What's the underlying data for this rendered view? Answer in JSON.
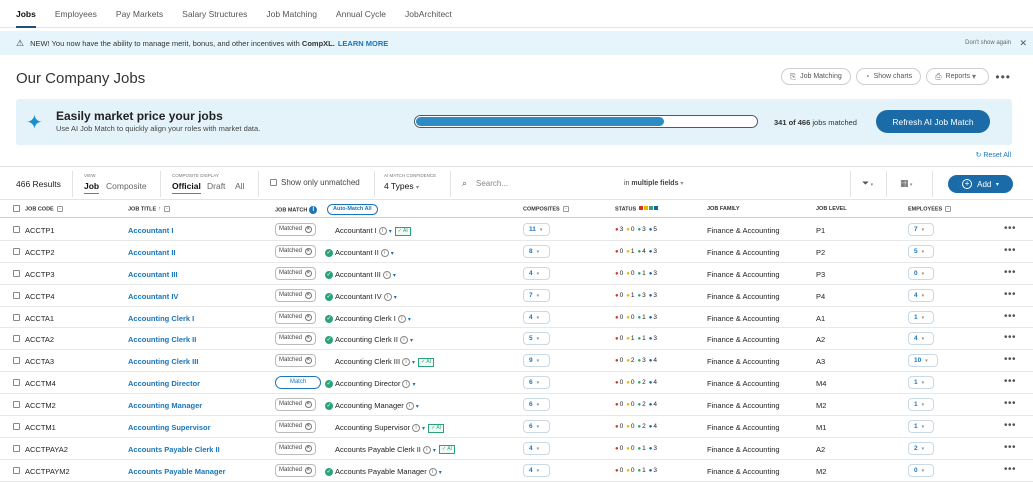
{
  "nav": [
    "Jobs",
    "Employees",
    "Pay Markets",
    "Salary Structures",
    "Job Matching",
    "Annual Cycle",
    "JobArchitect"
  ],
  "banner": {
    "text": "NEW! You now have the ability to manage merit, bonus, and other incentives with",
    "brand": "CompXL.",
    "link": "LEARN MORE",
    "dismiss": "Don't show again"
  },
  "page_title": "Our Company Jobs",
  "actions": {
    "job_matching": "Job Matching",
    "show_charts": "Show charts",
    "reports": "Reports"
  },
  "promo": {
    "title": "Easily market price your jobs",
    "subtitle": "Use AI Job Match to quickly align your roles with market data.",
    "matched_count": "341 of 466",
    "matched_suffix": "jobs matched",
    "progress": 0.73,
    "refresh": "Refresh AI Job Match"
  },
  "reset_all": "Reset All",
  "filters": {
    "results": "466 Results",
    "view_label": "VIEW",
    "view_job": "Job",
    "view_composite": "Composite",
    "composite_label": "COMPOSITE DISPLAY",
    "official": "Official",
    "draft": "Draft",
    "all": "All",
    "unmatched": "Show only unmatched",
    "confidence_label": "AI MATCH CONFIDENCE",
    "confidence_value": "4 Types",
    "search_placeholder": "Search...",
    "fields_prefix": "in",
    "fields_value": "multiple fields",
    "add": "Add"
  },
  "columns": {
    "code": "JOB CODE",
    "title": "JOB TITLE",
    "match": "JOB MATCH",
    "automatch": "Auto-Match All",
    "composites": "COMPOSITES",
    "status": "STATUS",
    "family": "JOB FAMILY",
    "level": "JOB LEVEL",
    "employees": "EMPLOYEES"
  },
  "status_colors": {
    "red": "#d9302b",
    "yellow": "#f0b400",
    "green": "#2aa37a",
    "blue": "#1a5fa8"
  },
  "rows": [
    {
      "code": "ACCTP1",
      "title": "Accountant I",
      "matched": true,
      "check": false,
      "bench": "Accountant I",
      "ai": true,
      "comp": "11",
      "s": [
        3,
        0,
        3,
        5
      ],
      "family": "Finance & Accounting",
      "level": "P1",
      "emp": "7"
    },
    {
      "code": "ACCTP2",
      "title": "Accountant II",
      "matched": true,
      "check": true,
      "bench": "Accountant II",
      "ai": false,
      "comp": "8",
      "s": [
        0,
        1,
        4,
        3
      ],
      "family": "Finance & Accounting",
      "level": "P2",
      "emp": "5"
    },
    {
      "code": "ACCTP3",
      "title": "Accountant III",
      "matched": true,
      "check": true,
      "bench": "Accountant III",
      "ai": false,
      "comp": "4",
      "s": [
        0,
        0,
        1,
        3
      ],
      "family": "Finance & Accounting",
      "level": "P3",
      "emp": "0"
    },
    {
      "code": "ACCTP4",
      "title": "Accountant IV",
      "matched": true,
      "check": true,
      "bench": "Accountant IV",
      "ai": false,
      "comp": "7",
      "s": [
        0,
        1,
        3,
        3
      ],
      "family": "Finance & Accounting",
      "level": "P4",
      "emp": "4"
    },
    {
      "code": "ACCTA1",
      "title": "Accounting Clerk I",
      "matched": true,
      "check": true,
      "bench": "Accounting Clerk I",
      "ai": false,
      "comp": "4",
      "s": [
        0,
        0,
        1,
        3
      ],
      "family": "Finance & Accounting",
      "level": "A1",
      "emp": "1"
    },
    {
      "code": "ACCTA2",
      "title": "Accounting Clerk II",
      "matched": true,
      "check": true,
      "bench": "Accounting Clerk II",
      "ai": false,
      "comp": "5",
      "s": [
        0,
        1,
        1,
        3
      ],
      "family": "Finance & Accounting",
      "level": "A2",
      "emp": "4"
    },
    {
      "code": "ACCTA3",
      "title": "Accounting Clerk III",
      "matched": true,
      "check": false,
      "bench": "Accounting Clerk III",
      "ai": true,
      "comp": "9",
      "s": [
        0,
        2,
        3,
        4
      ],
      "family": "Finance & Accounting",
      "level": "A3",
      "emp": "10"
    },
    {
      "code": "ACCTM4",
      "title": "Accounting Director",
      "matched": false,
      "match_label": "Match",
      "check": true,
      "bench": "Accounting Director",
      "ai": false,
      "comp": "6",
      "s": [
        0,
        0,
        2,
        4
      ],
      "family": "Finance & Accounting",
      "level": "M4",
      "emp": "1"
    },
    {
      "code": "ACCTM2",
      "title": "Accounting Manager",
      "matched": true,
      "check": true,
      "bench": "Accounting Manager",
      "ai": false,
      "comp": "6",
      "s": [
        0,
        0,
        2,
        4
      ],
      "family": "Finance & Accounting",
      "level": "M2",
      "emp": "1"
    },
    {
      "code": "ACCTM1",
      "title": "Accounting Supervisor",
      "matched": true,
      "check": false,
      "bench": "Accounting Supervisor",
      "ai": true,
      "comp": "6",
      "s": [
        0,
        0,
        2,
        4
      ],
      "family": "Finance & Accounting",
      "level": "M1",
      "emp": "1"
    },
    {
      "code": "ACCTPAYA2",
      "title": "Accounts Payable Clerk II",
      "matched": true,
      "check": false,
      "bench": "Accounts Payable Clerk II",
      "ai": true,
      "comp": "4",
      "s": [
        0,
        0,
        1,
        3
      ],
      "family": "Finance & Accounting",
      "level": "A2",
      "emp": "2"
    },
    {
      "code": "ACCTPAYM2",
      "title": "Accounts Payable Manager",
      "matched": true,
      "check": true,
      "bench": "Accounts Payable Manager",
      "ai": false,
      "comp": "4",
      "s": [
        0,
        0,
        1,
        3
      ],
      "family": "Finance & Accounting",
      "level": "M2",
      "emp": "0"
    }
  ],
  "matched_label": "Matched",
  "ai_tag": "AI"
}
